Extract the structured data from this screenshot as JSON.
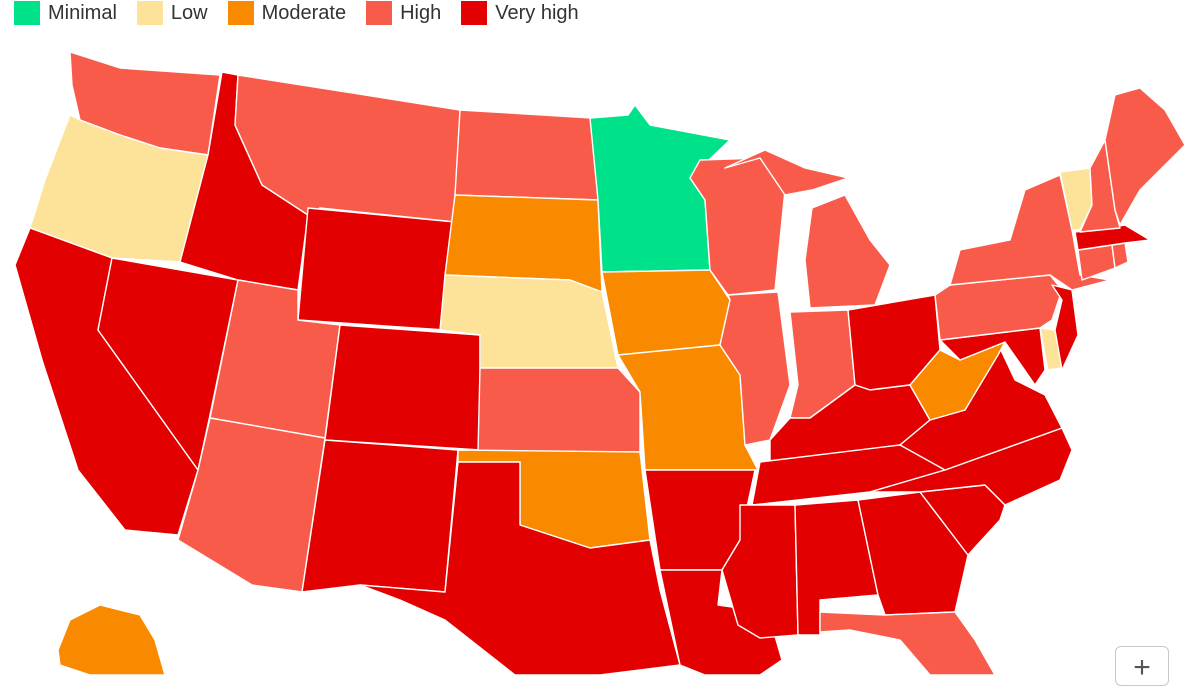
{
  "legend": [
    {
      "key": "minimal",
      "label": "Minimal",
      "color": "#00e28a"
    },
    {
      "key": "low",
      "label": "Low",
      "color": "#fde39a"
    },
    {
      "key": "moderate",
      "label": "Moderate",
      "color": "#f98a00"
    },
    {
      "key": "high",
      "label": "High",
      "color": "#f95b4a"
    },
    {
      "key": "very_high",
      "label": "Very high",
      "color": "#e30000"
    }
  ],
  "states": {
    "WA": "high",
    "OR": "low",
    "CA": "very_high",
    "NV": "very_high",
    "ID": "very_high",
    "MT": "high",
    "WY": "very_high",
    "UT": "high",
    "AZ": "high",
    "CO": "very_high",
    "NM": "very_high",
    "ND": "high",
    "SD": "moderate",
    "NE": "low",
    "KS": "high",
    "OK": "moderate",
    "TX": "very_high",
    "MN": "minimal",
    "IA": "moderate",
    "MO": "moderate",
    "AR": "very_high",
    "LA": "very_high",
    "WI": "high",
    "IL": "high",
    "MI": "high",
    "IN": "high",
    "OH": "very_high",
    "KY": "very_high",
    "TN": "very_high",
    "MS": "very_high",
    "AL": "very_high",
    "GA": "very_high",
    "FL": "high",
    "SC": "very_high",
    "NC": "very_high",
    "VA": "very_high",
    "WV": "moderate",
    "MD": "very_high",
    "DE": "low",
    "PA": "high",
    "NJ": "very_high",
    "NY": "high",
    "CT": "high",
    "RI": "high",
    "MA": "very_high",
    "VT": "low",
    "NH": "high",
    "ME": "high",
    "AK": "moderate"
  },
  "zoom": {
    "in_label": "+"
  }
}
